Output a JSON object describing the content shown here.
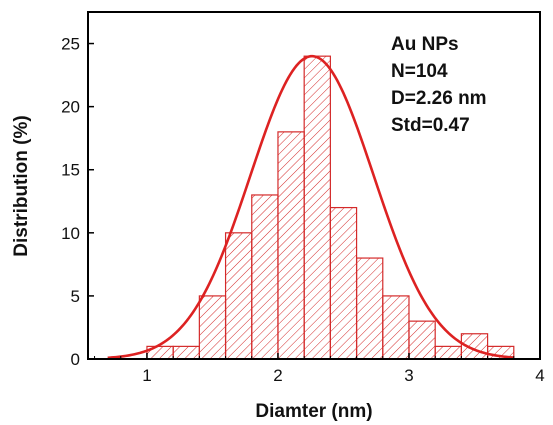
{
  "chart_data": {
    "type": "bar",
    "subtype": "histogram with fitted normal curve",
    "xlabel": "Diamter (nm)",
    "ylabel": "Distribution (%)",
    "xlim": [
      0.55,
      4.0
    ],
    "ylim": [
      0,
      27.5
    ],
    "xticks": [
      1,
      2,
      3,
      4
    ],
    "yticks": [
      0,
      5,
      10,
      15,
      20,
      25
    ],
    "bin_width": 0.2,
    "bins": [
      {
        "x": 1.1,
        "value": 1
      },
      {
        "x": 1.3,
        "value": 1
      },
      {
        "x": 1.5,
        "value": 5
      },
      {
        "x": 1.7,
        "value": 10
      },
      {
        "x": 1.9,
        "value": 13
      },
      {
        "x": 2.1,
        "value": 18
      },
      {
        "x": 2.3,
        "value": 24
      },
      {
        "x": 2.5,
        "value": 12
      },
      {
        "x": 2.7,
        "value": 8
      },
      {
        "x": 2.9,
        "value": 5
      },
      {
        "x": 3.1,
        "value": 3
      },
      {
        "x": 3.3,
        "value": 1
      },
      {
        "x": 3.5,
        "value": 2
      },
      {
        "x": 3.7,
        "value": 1
      }
    ],
    "fit": {
      "type": "gaussian",
      "mean": 2.26,
      "std": 0.47,
      "peak": 24,
      "x_range": [
        0.7,
        3.8
      ]
    },
    "annotations": [
      "Au NPs",
      "N=104",
      "D=2.26 nm",
      "Std=0.47"
    ],
    "colors": {
      "bar_edge": "#d42a2a",
      "hatch": "#d42a2a",
      "fit_line": "#dd2222",
      "axes": "#000000"
    },
    "grid": false,
    "legend": "none"
  }
}
